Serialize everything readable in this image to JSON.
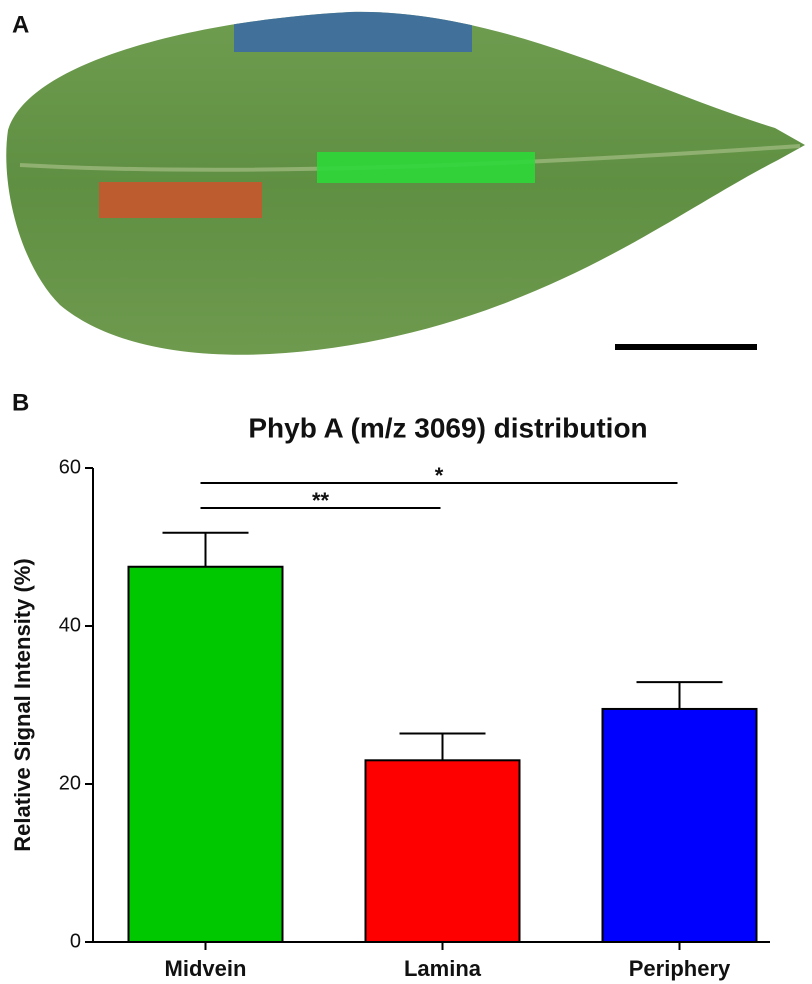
{
  "panel_a": {
    "label": "A"
  },
  "chart_data": {
    "type": "bar",
    "panel_label": "B",
    "title": "Phyb A (m/z 3069) distribution",
    "y_label": "Relative Signal Intensity (%)",
    "categories": [
      "Midvein",
      "Lamina",
      "Periphery"
    ],
    "values": [
      47.5,
      23,
      29.5
    ],
    "errors": [
      4.3,
      3.4,
      3.4
    ],
    "colors": [
      "#00c800",
      "#ff0000",
      "#0000ff"
    ],
    "ylim": [
      0,
      60
    ],
    "yticks": [
      0,
      20,
      40,
      60
    ],
    "annotations": [
      {
        "label": "**",
        "from": "Midvein",
        "to": "Lamina"
      },
      {
        "label": "*",
        "from": "Midvein",
        "to": "Periphery"
      }
    ]
  }
}
